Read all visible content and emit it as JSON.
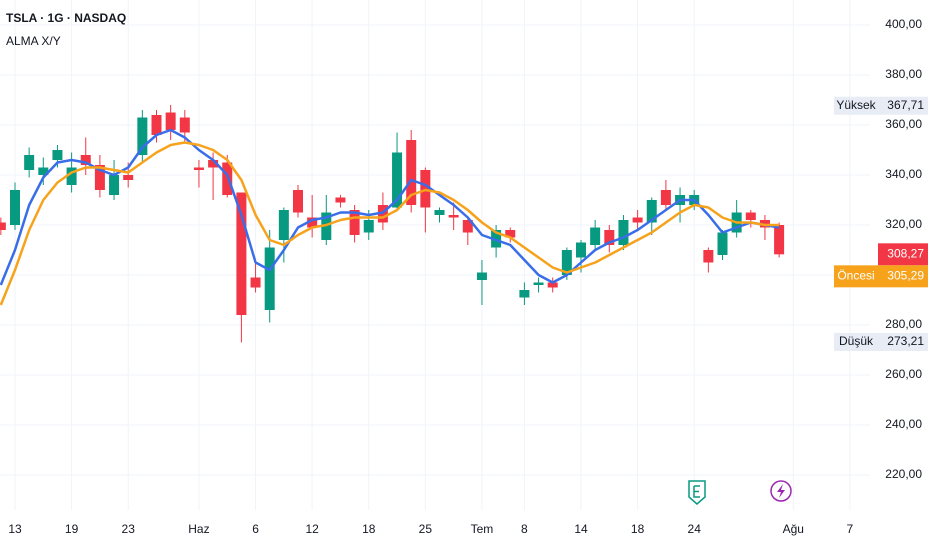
{
  "chart_data": {
    "type": "candlestick",
    "title": "TSLA · 1G · NASDAQ",
    "subtitle": "ALMA X/Y",
    "categories": [
      null,
      "13",
      null,
      null,
      null,
      "19",
      null,
      null,
      null,
      "23",
      null,
      null,
      null,
      null,
      "Haz",
      null,
      null,
      null,
      "6",
      null,
      null,
      null,
      "12",
      null,
      null,
      null,
      "18",
      null,
      null,
      null,
      "25",
      null,
      null,
      null,
      "Tem",
      null,
      null,
      "8",
      null,
      null,
      null,
      "14",
      null,
      null,
      null,
      "18",
      null,
      null,
      null,
      "24",
      null,
      null,
      null,
      null,
      null,
      null,
      "Ağu",
      null,
      null,
      null,
      "7"
    ],
    "open": [
      321,
      320,
      342,
      340,
      346,
      336,
      348,
      344,
      332,
      340,
      348,
      364,
      365,
      363,
      343,
      346,
      345,
      333,
      299,
      286,
      314,
      334,
      323,
      314,
      331,
      326,
      317,
      328,
      327,
      354,
      342,
      324,
      324,
      322,
      298,
      311,
      318,
      291,
      296,
      297,
      300,
      307,
      312,
      318,
      312,
      323,
      321,
      334,
      328,
      328,
      310,
      308,
      317,
      325,
      322,
      320,
      null,
      null,
      null,
      null,
      null
    ],
    "high": [
      323,
      337,
      351,
      347,
      352,
      349,
      355,
      348,
      346,
      345,
      366,
      366,
      368,
      366,
      346,
      349,
      348,
      333,
      305,
      318,
      327,
      336,
      332,
      332,
      332,
      328,
      326,
      333,
      357,
      358,
      343,
      327,
      329,
      323,
      306,
      320,
      319,
      297,
      299,
      299,
      311,
      314,
      322,
      320,
      324,
      326,
      331,
      338,
      335,
      334,
      311,
      318,
      330,
      326,
      324,
      321,
      null,
      null,
      null,
      null,
      null
    ],
    "low": [
      316,
      318,
      339,
      336,
      343,
      333,
      340,
      331,
      330,
      335,
      345,
      353,
      354,
      353,
      335,
      330,
      331,
      273,
      293,
      281,
      305,
      323,
      315,
      312,
      327,
      313,
      314,
      318,
      326,
      325,
      317,
      321,
      318,
      312,
      288,
      307,
      313,
      288,
      293,
      293,
      298,
      301,
      310,
      309,
      310,
      318,
      316,
      326,
      321,
      326,
      301,
      306,
      315,
      319,
      314,
      307,
      null,
      null,
      null,
      null,
      null
    ],
    "close": [
      318,
      334,
      348,
      343,
      350,
      343,
      344,
      334,
      340,
      338,
      363,
      356,
      358,
      357,
      342,
      343,
      332,
      284,
      295,
      311,
      326,
      325,
      319,
      325,
      329,
      316,
      322,
      321,
      349,
      328,
      327,
      326,
      323,
      317,
      301,
      318,
      315,
      294,
      297,
      295,
      310,
      313,
      319,
      312,
      322,
      321,
      330,
      328,
      332,
      332,
      305,
      317,
      325,
      322,
      319,
      308.27,
      null,
      null,
      null,
      null,
      null
    ],
    "up_color": "#089981",
    "down_color": "#f23645",
    "lines": [
      {
        "color": "#3a6ee8",
        "values": [
          296,
          310,
          328,
          339,
          345,
          346,
          345,
          342,
          340,
          343,
          351,
          356,
          358,
          355,
          350,
          346,
          340,
          324,
          305,
          302,
          310,
          319,
          322,
          323,
          325,
          325,
          324,
          325,
          330,
          338,
          336,
          332,
          328,
          323,
          316,
          314,
          312,
          306,
          300,
          297,
          300,
          305,
          310,
          313,
          315,
          318,
          322,
          326,
          330,
          330,
          324,
          317,
          319,
          321,
          320,
          319,
          null,
          null,
          null,
          null,
          null
        ]
      },
      {
        "color": "#f7a21b",
        "values": [
          288,
          302,
          318,
          330,
          337,
          341,
          343,
          343,
          342,
          341,
          345,
          349,
          352,
          353,
          352,
          350,
          346,
          338,
          324,
          314,
          312,
          316,
          319,
          320,
          322,
          323,
          323,
          323,
          326,
          332,
          334,
          333,
          330,
          326,
          321,
          317,
          315,
          311,
          307,
          303,
          301,
          303,
          305,
          308,
          311,
          314,
          317,
          321,
          325,
          328,
          327,
          323,
          321,
          321,
          320,
          320,
          null,
          null,
          null,
          null,
          null
        ]
      }
    ],
    "ylim": [
      206,
      410
    ],
    "yticks": [
      {
        "value": 220,
        "label": "220,00"
      },
      {
        "value": 240,
        "label": "240,00"
      },
      {
        "value": 260,
        "label": "260,00"
      },
      {
        "value": 280,
        "label": "280,00"
      },
      {
        "value": 300,
        "label": "300,00"
      },
      {
        "value": 320,
        "label": "320,00"
      },
      {
        "value": 340,
        "label": "340,00"
      },
      {
        "value": 360,
        "label": "360,00"
      },
      {
        "value": 380,
        "label": "380,00"
      },
      {
        "value": 400,
        "label": "400,00"
      }
    ],
    "grid": true,
    "price_labels": [
      {
        "name": "Yüksek",
        "value": 367.71,
        "label": "367,71"
      },
      {
        "value": 308.27,
        "label": "308,27",
        "color": "#f23645"
      },
      {
        "name": "Öncesi",
        "value": 305.29,
        "label": "305,29",
        "color": "#f7a21b"
      },
      {
        "name": "Düşük",
        "value": 273.21,
        "label": "273,21"
      }
    ]
  }
}
